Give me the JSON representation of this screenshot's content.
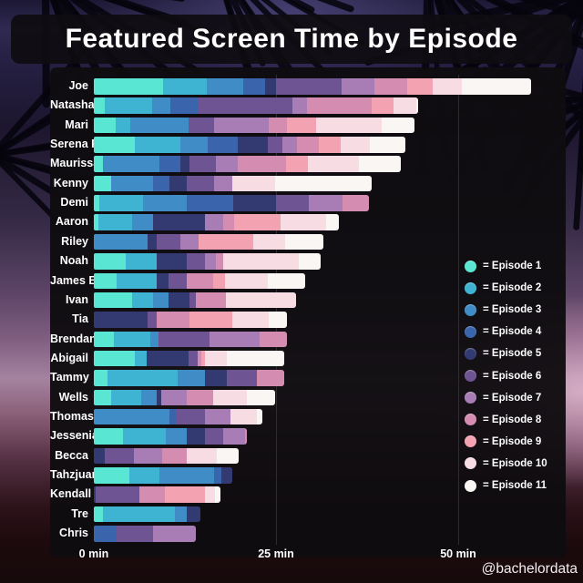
{
  "title": "Featured Screen Time by Episode",
  "watermark": "@bachelordata",
  "legend": {
    "prefix": "= ",
    "entries": [
      "= Episode 1",
      "= Episode 2",
      "= Episode 3",
      "= Episode 4",
      "= Episode 5",
      "= Episode 6",
      "= Episode 7",
      "= Episode 8",
      "= Episode 9",
      "= Episode 10",
      "= Episode 11"
    ]
  },
  "chart_data": {
    "type": "bar",
    "stacked": true,
    "orientation": "horizontal",
    "title": "Featured Screen Time by Episode",
    "unit": "min",
    "xlim": [
      0,
      63
    ],
    "grid": "vertical",
    "legend_position": "middle-right",
    "x_ticks": [
      {
        "value": 0,
        "label": "0 min"
      },
      {
        "value": 25,
        "label": "25 min"
      },
      {
        "value": 50,
        "label": "50 min"
      }
    ],
    "episodes": [
      {
        "name": "Episode 1",
        "color": "#59e6d2"
      },
      {
        "name": "Episode 2",
        "color": "#3fb3d2"
      },
      {
        "name": "Episode 3",
        "color": "#3f8cc7"
      },
      {
        "name": "Episode 4",
        "color": "#3a64ab"
      },
      {
        "name": "Episode 5",
        "color": "#333a72"
      },
      {
        "name": "Episode 6",
        "color": "#6e5492"
      },
      {
        "name": "Episode 7",
        "color": "#a87cb4"
      },
      {
        "name": "Episode 8",
        "color": "#d48cb1"
      },
      {
        "name": "Episode 9",
        "color": "#f2a2b0"
      },
      {
        "name": "Episode 10",
        "color": "#f8dce3"
      },
      {
        "name": "Episode 11",
        "color": "#faf6f4"
      }
    ],
    "rows": [
      {
        "name": "Joe",
        "minutes": [
          9.5,
          6,
          5,
          3,
          1.5,
          9,
          4.5,
          4.5,
          3.5,
          4,
          9.5
        ]
      },
      {
        "name": "Natasha",
        "minutes": [
          1.5,
          6.5,
          2.5,
          3.8,
          0,
          13,
          2,
          8.8,
          3,
          3.2,
          0.2
        ]
      },
      {
        "name": "Mari",
        "minutes": [
          3,
          2,
          8,
          0,
          0,
          3.5,
          7.5,
          2.5,
          4,
          9,
          4.5
        ]
      },
      {
        "name": "Serena P",
        "minutes": [
          5.6,
          6.3,
          3.7,
          4.2,
          4.1,
          2,
          2,
          3,
          3,
          4,
          4.9
        ]
      },
      {
        "name": "Maurissa",
        "minutes": [
          1.2,
          0,
          7.8,
          2.9,
          1.2,
          3.7,
          3,
          6.6,
          3,
          7,
          5.7
        ]
      },
      {
        "name": "Kenny",
        "minutes": [
          2.4,
          0,
          5.7,
          2.3,
          2.4,
          3.7,
          2.5,
          0,
          0,
          5.9,
          13.2
        ]
      },
      {
        "name": "Demi",
        "minutes": [
          0.8,
          6,
          6,
          6.3,
          5.9,
          4.5,
          4.6,
          3.7,
          0,
          0,
          0
        ]
      },
      {
        "name": "Aaron",
        "minutes": [
          0.6,
          4.6,
          2.9,
          0,
          7.1,
          0,
          2.5,
          1.6,
          6.3,
          6.3,
          1.7
        ]
      },
      {
        "name": "Riley",
        "minutes": [
          0,
          0,
          7.4,
          0,
          1.2,
          3.3,
          2.5,
          0,
          7.5,
          4.3,
          5.3
        ]
      },
      {
        "name": "Noah",
        "minutes": [
          4.4,
          4.2,
          0,
          0,
          4.1,
          2.5,
          1.6,
          0.9,
          0,
          10.4,
          3
        ]
      },
      {
        "name": "James B",
        "minutes": [
          3.1,
          5.5,
          0,
          0,
          1.6,
          2.5,
          0,
          3.7,
          1.6,
          5.9,
          5.1
        ]
      },
      {
        "name": "Ivan",
        "minutes": [
          5.2,
          2.9,
          2.1,
          0,
          2.9,
          0.9,
          0,
          4.1,
          0,
          9.7,
          0
        ]
      },
      {
        "name": "Tia",
        "minutes": [
          0,
          0,
          0,
          0,
          7.4,
          1.2,
          0,
          4.5,
          5.9,
          5,
          2.5
        ]
      },
      {
        "name": "Brendan",
        "minutes": [
          2.7,
          5,
          1.2,
          0,
          0,
          7,
          6.8,
          3.8,
          0,
          0,
          0
        ]
      },
      {
        "name": "Abigail",
        "minutes": [
          5.6,
          1.7,
          0,
          0,
          5.7,
          1.2,
          0,
          0.5,
          0.5,
          3,
          7.9
        ]
      },
      {
        "name": "Tammy",
        "minutes": [
          1.9,
          9.6,
          3.8,
          0,
          2.9,
          4.2,
          0,
          3.7,
          0,
          0,
          0
        ]
      },
      {
        "name": "Wells",
        "minutes": [
          2.4,
          4.1,
          2.1,
          0,
          0.6,
          0,
          3.5,
          3.7,
          0,
          4.6,
          3.9
        ]
      },
      {
        "name": "Thomas",
        "minutes": [
          0,
          0,
          10.4,
          0.8,
          0,
          4.1,
          3.4,
          0,
          0,
          3.7,
          0.7
        ]
      },
      {
        "name": "Jessenia",
        "minutes": [
          4,
          5.9,
          2.9,
          0,
          2.5,
          2.5,
          2.9,
          0.3,
          0,
          0,
          0
        ]
      },
      {
        "name": "Becca",
        "minutes": [
          0,
          0,
          0,
          0,
          1.5,
          4,
          3.9,
          3.4,
          0,
          4.1,
          3
        ]
      },
      {
        "name": "Tahzjuan",
        "minutes": [
          4.9,
          4.1,
          7.5,
          1,
          1.5,
          0,
          0,
          0,
          0,
          0,
          0
        ]
      },
      {
        "name": "Kendall",
        "minutes": [
          0,
          0,
          0,
          0,
          0.3,
          6,
          0,
          3.4,
          5.6,
          1.3,
          0.8
        ]
      },
      {
        "name": "Tre",
        "minutes": [
          1.2,
          9.9,
          1.6,
          0,
          1.9,
          0,
          0,
          0,
          0,
          0,
          0
        ]
      },
      {
        "name": "Chris",
        "minutes": [
          0,
          0,
          0,
          3.1,
          0,
          5,
          5.9,
          0,
          0,
          0,
          0
        ]
      }
    ]
  }
}
